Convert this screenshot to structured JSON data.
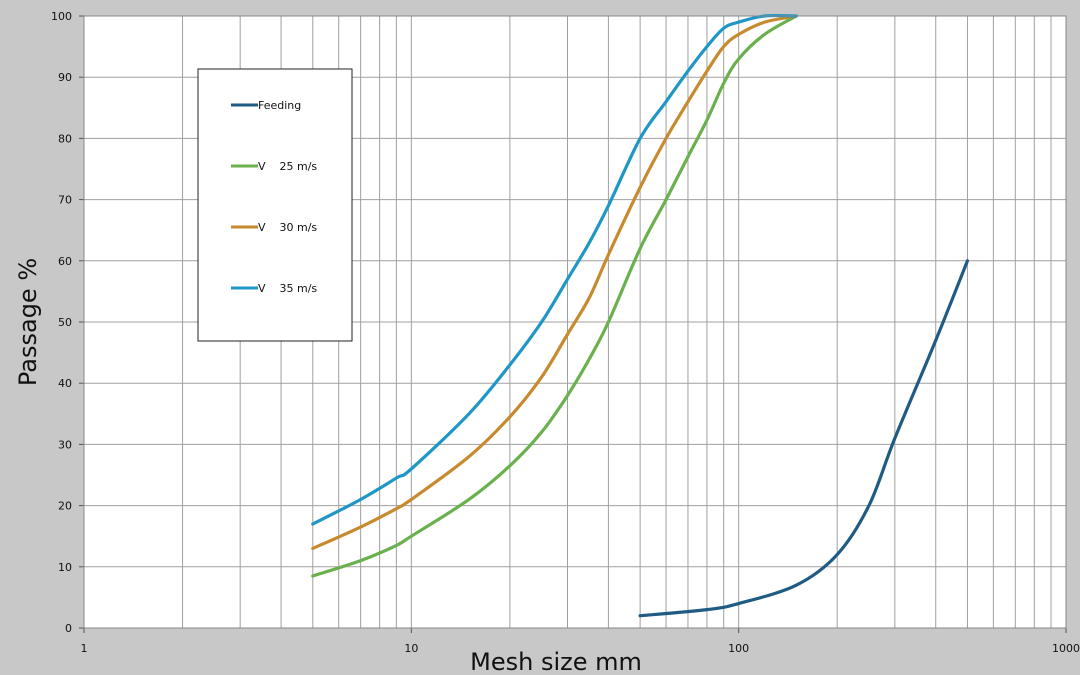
{
  "chart_data": {
    "type": "line",
    "title": "",
    "xlabel": "Mesh size mm",
    "ylabel": "Passage %",
    "xscale": "log",
    "xlim": [
      1,
      1000
    ],
    "ylim": [
      0,
      100
    ],
    "grid": true,
    "legend_position": "top-left",
    "x_ticks": [
      {
        "value": 1,
        "label": "1"
      },
      {
        "value": 10,
        "label": "10"
      },
      {
        "value": 100,
        "label": "100"
      },
      {
        "value": 1000,
        "label": "1000"
      }
    ],
    "y_ticks": [
      {
        "value": 0,
        "label": "0"
      },
      {
        "value": 10,
        "label": "10"
      },
      {
        "value": 20,
        "label": "20"
      },
      {
        "value": 30,
        "label": "30"
      },
      {
        "value": 40,
        "label": "40"
      },
      {
        "value": 50,
        "label": "50"
      },
      {
        "value": 60,
        "label": "60"
      },
      {
        "value": 70,
        "label": "70"
      },
      {
        "value": 80,
        "label": "80"
      },
      {
        "value": 90,
        "label": "90"
      },
      {
        "value": 100,
        "label": "100"
      }
    ],
    "series": [
      {
        "name": "Feeding",
        "color": "#1f5b82",
        "points": [
          [
            50,
            2
          ],
          [
            80,
            3
          ],
          [
            100,
            4
          ],
          [
            150,
            7
          ],
          [
            200,
            12
          ],
          [
            250,
            20
          ],
          [
            300,
            31
          ],
          [
            400,
            47
          ],
          [
            500,
            60
          ]
        ]
      },
      {
        "name": "V    25 m/s",
        "color": "#6ab04c",
        "points": [
          [
            5,
            8.5
          ],
          [
            7,
            11
          ],
          [
            9,
            13.5
          ],
          [
            10,
            15
          ],
          [
            15,
            21
          ],
          [
            20,
            26.5
          ],
          [
            25,
            32
          ],
          [
            30,
            38
          ],
          [
            35,
            44
          ],
          [
            40,
            50
          ],
          [
            50,
            62
          ],
          [
            60,
            70
          ],
          [
            70,
            77
          ],
          [
            80,
            83
          ],
          [
            90,
            89
          ],
          [
            100,
            93
          ],
          [
            120,
            97
          ],
          [
            150,
            100
          ]
        ]
      },
      {
        "name": "V    30 m/s",
        "color": "#c88a2e",
        "points": [
          [
            5,
            13
          ],
          [
            7,
            16.5
          ],
          [
            9,
            19.5
          ],
          [
            10,
            21
          ],
          [
            15,
            28
          ],
          [
            20,
            34.5
          ],
          [
            25,
            41
          ],
          [
            30,
            48
          ],
          [
            35,
            54
          ],
          [
            40,
            61
          ],
          [
            50,
            72
          ],
          [
            60,
            80
          ],
          [
            70,
            86
          ],
          [
            80,
            91
          ],
          [
            90,
            95
          ],
          [
            100,
            97
          ],
          [
            120,
            99
          ],
          [
            150,
            100
          ]
        ]
      },
      {
        "name": "V    35 m/s",
        "color": "#1f97c6",
        "points": [
          [
            5,
            17
          ],
          [
            7,
            21
          ],
          [
            9,
            24.5
          ],
          [
            10,
            26
          ],
          [
            15,
            35
          ],
          [
            20,
            43
          ],
          [
            25,
            50
          ],
          [
            30,
            57
          ],
          [
            35,
            63
          ],
          [
            40,
            69
          ],
          [
            50,
            80
          ],
          [
            60,
            86
          ],
          [
            70,
            91
          ],
          [
            80,
            95
          ],
          [
            90,
            98
          ],
          [
            100,
            99
          ],
          [
            120,
            100
          ],
          [
            150,
            100
          ]
        ]
      }
    ]
  }
}
